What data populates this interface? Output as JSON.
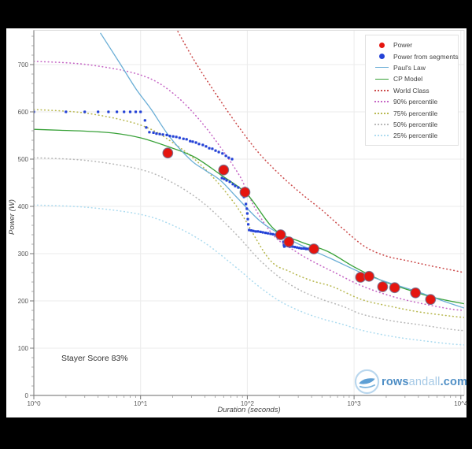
{
  "chart_data": {
    "type": "scatter",
    "title": "",
    "xlabel": "Duration (seconds)",
    "ylabel": "Power (W)",
    "annotation": "Stayer Score 83%",
    "x_scale": "log",
    "xlim_log": [
      0,
      4.03
    ],
    "ylim": [
      0,
      772
    ],
    "grid": true,
    "x_tick_labels": [
      "10^0",
      "10^1",
      "10^2",
      "10^3",
      "10^4"
    ],
    "y_tick_labels": [
      "0",
      "100",
      "200",
      "300",
      "400",
      "500",
      "600",
      "700"
    ],
    "y_tick_values": [
      0,
      100,
      200,
      300,
      400,
      500,
      600,
      700
    ],
    "legend_position": "top-right",
    "series": [
      {
        "name": "25% percentile",
        "type": "line",
        "style": "dotted",
        "color": "#aedcf0",
        "points": [
          [
            1,
            403
          ],
          [
            3.16,
            398
          ],
          [
            10,
            383
          ],
          [
            20,
            360
          ],
          [
            39.8,
            323
          ],
          [
            79.4,
            270
          ],
          [
            126,
            232
          ],
          [
            200,
            200
          ],
          [
            316,
            178
          ],
          [
            501,
            162
          ],
          [
            794,
            150
          ],
          [
            1175,
            138
          ],
          [
            2239,
            125
          ],
          [
            3981,
            117
          ],
          [
            7943,
            109
          ],
          [
            10700,
            107
          ]
        ]
      },
      {
        "name": "50% percentile",
        "type": "line",
        "style": "dotted",
        "color": "#b9b9b9",
        "points": [
          [
            1,
            503
          ],
          [
            3.16,
            497
          ],
          [
            10,
            478
          ],
          [
            20,
            450
          ],
          [
            39.8,
            405
          ],
          [
            79.4,
            340
          ],
          [
            126,
            290
          ],
          [
            200,
            250
          ],
          [
            316,
            222
          ],
          [
            501,
            203
          ],
          [
            794,
            188
          ],
          [
            1175,
            172
          ],
          [
            2239,
            158
          ],
          [
            3981,
            150
          ],
          [
            7943,
            140
          ],
          [
            10700,
            137
          ]
        ]
      },
      {
        "name": "75% percentile",
        "type": "line",
        "style": "dotted",
        "color": "#b9b952",
        "points": [
          [
            1,
            605
          ],
          [
            3.16,
            597
          ],
          [
            10,
            572
          ],
          [
            20,
            535
          ],
          [
            39.8,
            480
          ],
          [
            79.4,
            400
          ],
          [
            158,
            290
          ],
          [
            251,
            262
          ],
          [
            398,
            243
          ],
          [
            631,
            230
          ],
          [
            1175,
            203
          ],
          [
            2239,
            188
          ],
          [
            3981,
            177
          ],
          [
            7943,
            168
          ],
          [
            10700,
            165
          ]
        ]
      },
      {
        "name": "90% percentile",
        "type": "line",
        "style": "dotted",
        "color": "#c667c6",
        "points": [
          [
            1,
            707
          ],
          [
            3.16,
            700
          ],
          [
            10,
            678
          ],
          [
            20,
            640
          ],
          [
            39.8,
            570
          ],
          [
            79.4,
            475
          ],
          [
            100,
            430
          ],
          [
            126,
            385
          ],
          [
            182,
            335
          ],
          [
            282,
            305
          ],
          [
            398,
            285
          ],
          [
            631,
            262
          ],
          [
            1175,
            232
          ],
          [
            2239,
            210
          ],
          [
            3981,
            196
          ],
          [
            7943,
            183
          ],
          [
            10700,
            180
          ]
        ]
      },
      {
        "name": "World Class",
        "type": "line",
        "style": "dotted",
        "color": "#cc4c4c",
        "points": [
          [
            20,
            790
          ],
          [
            31.6,
            710
          ],
          [
            50,
            640
          ],
          [
            79,
            575
          ],
          [
            126,
            515
          ],
          [
            200,
            468
          ],
          [
            316,
            428
          ],
          [
            500,
            392
          ],
          [
            794,
            352
          ],
          [
            1259,
            315
          ],
          [
            2000,
            295
          ],
          [
            3162,
            285
          ],
          [
            5012,
            275
          ],
          [
            7943,
            266
          ],
          [
            10700,
            260
          ]
        ]
      },
      {
        "name": "CP Model",
        "type": "line",
        "style": "solid",
        "color": "#38a138",
        "points": [
          [
            1,
            563
          ],
          [
            1.78,
            561
          ],
          [
            3.16,
            559
          ],
          [
            5.62,
            555
          ],
          [
            10,
            545
          ],
          [
            17.8,
            527
          ],
          [
            31.6,
            505
          ],
          [
            56.2,
            467
          ],
          [
            100,
            425
          ],
          [
            178,
            352
          ],
          [
            316,
            325
          ],
          [
            562,
            305
          ],
          [
            1000,
            272
          ],
          [
            1778,
            244
          ],
          [
            3162,
            224
          ],
          [
            5623,
            207
          ],
          [
            10700,
            194
          ]
        ]
      },
      {
        "name": "Paul's Law",
        "type": "line",
        "style": "solid",
        "color": "#6aaed6",
        "points": [
          [
            4.2,
            767
          ],
          [
            6.3,
            705
          ],
          [
            9.1,
            648
          ],
          [
            12.6,
            605
          ],
          [
            18.6,
            548
          ],
          [
            29.5,
            498
          ],
          [
            40,
            477
          ],
          [
            56,
            455
          ],
          [
            79,
            420
          ],
          [
            130,
            370
          ],
          [
            200,
            342
          ],
          [
            304,
            320
          ],
          [
            600,
            290
          ],
          [
            1245,
            257
          ],
          [
            2218,
            237
          ],
          [
            3880,
            220
          ],
          [
            6800,
            200
          ],
          [
            10700,
            185
          ]
        ]
      },
      {
        "name": "Power from segments",
        "type": "scatter",
        "style": "square-dot",
        "color": "#2442d6",
        "points": [
          [
            1,
            600
          ],
          [
            2,
            600
          ],
          [
            3,
            600
          ],
          [
            4,
            600
          ],
          [
            5,
            600
          ],
          [
            6,
            600
          ],
          [
            7,
            600
          ],
          [
            8,
            600
          ],
          [
            9,
            600
          ],
          [
            10,
            600
          ],
          [
            11,
            582
          ],
          [
            11.3,
            567
          ],
          [
            12.1,
            557
          ],
          [
            13.2,
            556
          ],
          [
            14.1,
            554
          ],
          [
            15.1,
            553
          ],
          [
            16.2,
            552
          ],
          [
            17.6,
            551
          ],
          [
            18.8,
            549
          ],
          [
            20.2,
            548
          ],
          [
            21.6,
            547
          ],
          [
            23.2,
            545
          ],
          [
            25.2,
            543
          ],
          [
            27,
            542
          ],
          [
            29.1,
            538
          ],
          [
            30.8,
            537
          ],
          [
            33,
            535
          ],
          [
            35.3,
            532
          ],
          [
            38.3,
            530
          ],
          [
            41,
            527
          ],
          [
            44,
            523
          ],
          [
            47,
            522
          ],
          [
            50.4,
            518
          ],
          [
            54,
            515
          ],
          [
            58.5,
            512
          ],
          [
            62.9,
            507
          ],
          [
            67,
            503
          ],
          [
            72,
            500
          ],
          [
            57.8,
            460
          ],
          [
            60.7,
            458
          ],
          [
            64,
            455
          ],
          [
            68.5,
            452
          ],
          [
            73.2,
            447
          ],
          [
            77,
            443
          ],
          [
            82.3,
            440
          ],
          [
            88.5,
            430
          ],
          [
            93,
            420
          ],
          [
            97,
            405
          ],
          [
            99,
            395
          ],
          [
            100,
            385
          ],
          [
            101,
            373
          ],
          [
            102,
            362
          ],
          [
            104,
            350
          ],
          [
            109,
            349
          ],
          [
            114,
            348
          ],
          [
            120,
            347
          ],
          [
            126,
            347
          ],
          [
            133,
            346
          ],
          [
            140,
            345
          ],
          [
            148,
            344
          ],
          [
            156,
            343
          ],
          [
            165,
            342
          ],
          [
            174,
            341
          ],
          [
            184,
            340
          ],
          [
            194,
            339
          ],
          [
            202,
            339
          ],
          [
            215,
            337
          ],
          [
            218,
            325
          ],
          [
            220,
            318
          ],
          [
            222,
            315
          ],
          [
            228,
            317
          ],
          [
            240,
            316
          ],
          [
            252,
            315
          ],
          [
            265,
            315
          ],
          [
            278,
            314
          ],
          [
            292,
            313
          ],
          [
            307,
            312
          ],
          [
            322,
            311
          ],
          [
            338,
            311
          ],
          [
            355,
            310
          ],
          [
            372,
            310
          ],
          [
            390,
            309
          ],
          [
            410,
            309
          ]
        ]
      },
      {
        "name": "Power",
        "type": "scatter",
        "style": "big-dot",
        "color": "#e5150f",
        "points": [
          [
            18,
            513
          ],
          [
            60,
            477
          ],
          [
            95,
            430
          ],
          [
            205,
            340
          ],
          [
            245,
            325
          ],
          [
            420,
            310
          ],
          [
            1150,
            250
          ],
          [
            1380,
            252
          ],
          [
            1850,
            230
          ],
          [
            2400,
            228
          ],
          [
            3760,
            217
          ],
          [
            5200,
            203
          ]
        ]
      }
    ]
  },
  "legend": {
    "items": [
      {
        "label": "Power",
        "marker": "dot",
        "color": "#e5150f"
      },
      {
        "label": "Power from segments",
        "marker": "dot",
        "color": "#2442d6"
      },
      {
        "label": "Paul's Law",
        "marker": "solid",
        "color": "#6aaed6"
      },
      {
        "label": "CP Model",
        "marker": "solid",
        "color": "#38a138"
      },
      {
        "label": "World Class",
        "marker": "dotted",
        "color": "#cc4c4c"
      },
      {
        "label": "90% percentile",
        "marker": "dotted",
        "color": "#c667c6"
      },
      {
        "label": "75% percentile",
        "marker": "dotted",
        "color": "#b9b952"
      },
      {
        "label": "50% percentile",
        "marker": "dotted",
        "color": "#b9b9b9"
      },
      {
        "label": "25% percentile",
        "marker": "dotted",
        "color": "#aedcf0"
      }
    ]
  },
  "watermark": {
    "part1": "rows",
    "part2": "andall",
    "part3": ".com"
  },
  "colors": {
    "background": "#000000",
    "panel": "#ffffff",
    "grid": "#ebebeb",
    "axis": "#888888",
    "tick_text": "#555555"
  }
}
